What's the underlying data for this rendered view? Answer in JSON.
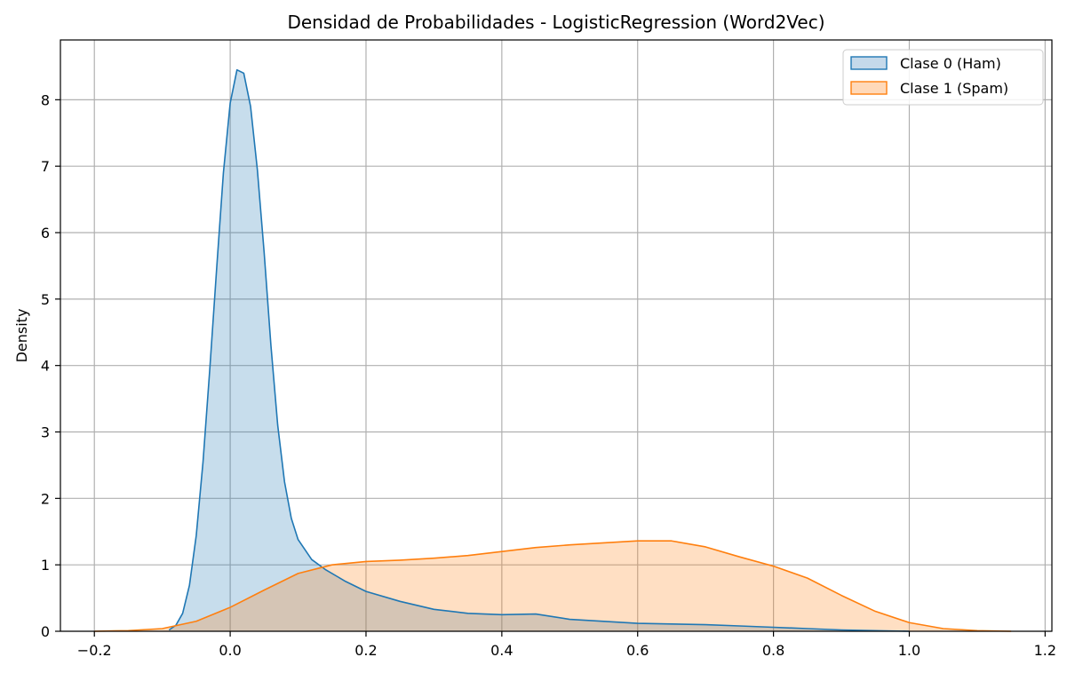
{
  "chart_data": {
    "type": "area",
    "title": "Densidad de Probabilidades - LogisticRegression (Word2Vec)",
    "xlabel": "",
    "ylabel": "Density",
    "xlim": [
      -0.25,
      1.21
    ],
    "ylim": [
      0,
      8.9
    ],
    "xticks": [
      -0.2,
      0.0,
      0.2,
      0.4,
      0.6,
      0.8,
      1.0,
      1.2
    ],
    "xtick_labels": [
      "−0.2",
      "0.0",
      "0.2",
      "0.4",
      "0.6",
      "0.8",
      "1.0",
      "1.2"
    ],
    "yticks": [
      0,
      1,
      2,
      3,
      4,
      5,
      6,
      7,
      8
    ],
    "ytick_labels": [
      "0",
      "1",
      "2",
      "3",
      "4",
      "5",
      "6",
      "7",
      "8"
    ],
    "grid": true,
    "legend_position": "top-right",
    "series": [
      {
        "name": "Clase 0 (Ham)",
        "color": "#1f77b4",
        "fill_color": "#c5d9ea",
        "points": [
          [
            -0.09,
            0.02
          ],
          [
            -0.08,
            0.09
          ],
          [
            -0.07,
            0.27
          ],
          [
            -0.06,
            0.69
          ],
          [
            -0.05,
            1.44
          ],
          [
            -0.04,
            2.55
          ],
          [
            -0.03,
            3.95
          ],
          [
            -0.02,
            5.45
          ],
          [
            -0.01,
            6.9
          ],
          [
            0.0,
            7.95
          ],
          [
            0.01,
            8.45
          ],
          [
            0.02,
            8.4
          ],
          [
            0.03,
            7.9
          ],
          [
            0.04,
            6.95
          ],
          [
            0.05,
            5.7
          ],
          [
            0.06,
            4.3
          ],
          [
            0.07,
            3.1
          ],
          [
            0.08,
            2.25
          ],
          [
            0.09,
            1.7
          ],
          [
            0.1,
            1.38
          ],
          [
            0.12,
            1.08
          ],
          [
            0.14,
            0.93
          ],
          [
            0.17,
            0.75
          ],
          [
            0.2,
            0.6
          ],
          [
            0.25,
            0.45
          ],
          [
            0.3,
            0.33
          ],
          [
            0.35,
            0.27
          ],
          [
            0.4,
            0.25
          ],
          [
            0.45,
            0.26
          ],
          [
            0.5,
            0.18
          ],
          [
            0.55,
            0.15
          ],
          [
            0.6,
            0.12
          ],
          [
            0.65,
            0.11
          ],
          [
            0.7,
            0.1
          ],
          [
            0.75,
            0.08
          ],
          [
            0.8,
            0.06
          ],
          [
            0.85,
            0.04
          ],
          [
            0.9,
            0.02
          ],
          [
            0.95,
            0.01
          ],
          [
            1.0,
            0.0
          ]
        ]
      },
      {
        "name": "Clase 1 (Spam)",
        "color": "#ff7f0e",
        "fill_color": "#ffd9b9",
        "points": [
          [
            -0.2,
            0.0
          ],
          [
            -0.15,
            0.01
          ],
          [
            -0.1,
            0.04
          ],
          [
            -0.05,
            0.15
          ],
          [
            0.0,
            0.36
          ],
          [
            0.05,
            0.62
          ],
          [
            0.1,
            0.87
          ],
          [
            0.15,
            1.0
          ],
          [
            0.2,
            1.05
          ],
          [
            0.25,
            1.07
          ],
          [
            0.3,
            1.1
          ],
          [
            0.35,
            1.14
          ],
          [
            0.4,
            1.2
          ],
          [
            0.45,
            1.26
          ],
          [
            0.5,
            1.3
          ],
          [
            0.55,
            1.33
          ],
          [
            0.6,
            1.36
          ],
          [
            0.65,
            1.36
          ],
          [
            0.7,
            1.27
          ],
          [
            0.75,
            1.12
          ],
          [
            0.8,
            0.98
          ],
          [
            0.85,
            0.8
          ],
          [
            0.9,
            0.54
          ],
          [
            0.95,
            0.3
          ],
          [
            1.0,
            0.13
          ],
          [
            1.05,
            0.04
          ],
          [
            1.1,
            0.01
          ],
          [
            1.15,
            0.0
          ]
        ]
      }
    ]
  }
}
